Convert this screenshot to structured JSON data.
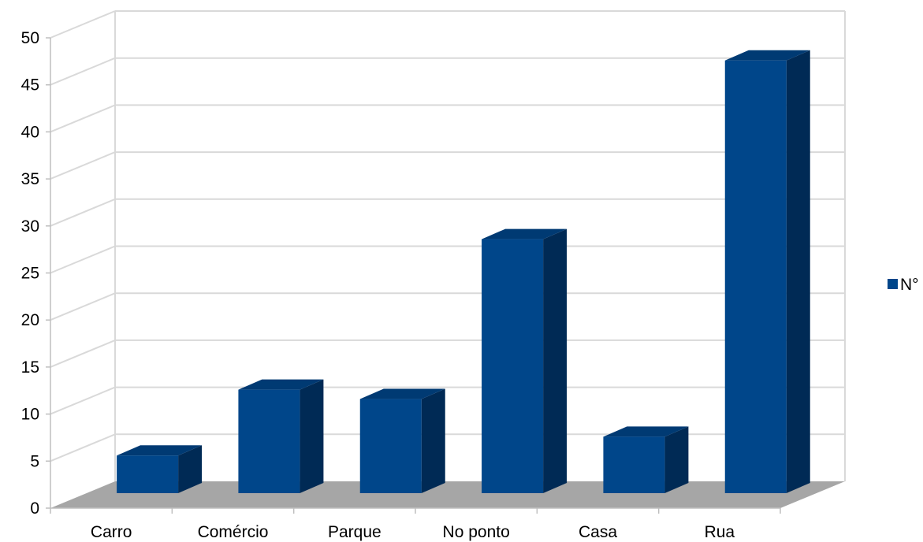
{
  "chart_data": {
    "type": "bar",
    "categories": [
      "Carro",
      "Comércio",
      "Parque",
      "No ponto",
      "Casa",
      "Rua"
    ],
    "series": [
      {
        "name": "N°",
        "values": [
          4,
          11,
          10,
          27,
          6,
          46
        ]
      }
    ],
    "ylim": [
      0,
      50
    ],
    "yticks": [
      0,
      5,
      10,
      15,
      20,
      25,
      30,
      35,
      40,
      45,
      50
    ],
    "grid": true,
    "legend": "right",
    "style": "3d",
    "colors": {
      "bar_front": "#00468a",
      "bar_side": "#002a55",
      "bar_top": "#003a73",
      "floor": "#a6a6a6",
      "grid": "#d9d9d9"
    }
  }
}
